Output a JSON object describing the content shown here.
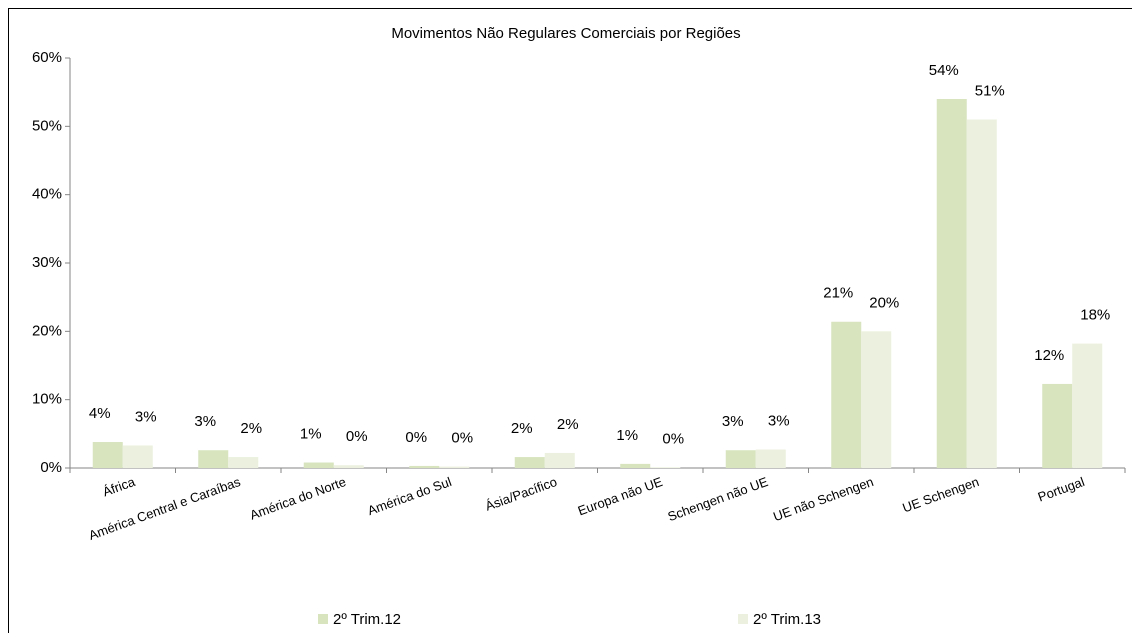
{
  "chart_data": {
    "type": "bar",
    "title": "Movimentos Não Regulares Comerciais por Regiões",
    "categories": [
      "África",
      "América Central e Caraíbas",
      "América do Norte",
      "América do Sul",
      "Ásia/Pacífico",
      "Europa não UE",
      "Schengen não UE",
      "UE não Schengen",
      "UE Schengen",
      "Portugal"
    ],
    "series": [
      {
        "name": "2º Trim.12",
        "color": "#d7e4bd",
        "values": [
          3.8,
          2.6,
          0.8,
          0.3,
          1.6,
          0.6,
          2.6,
          21.4,
          54,
          12.3
        ],
        "value_labels": [
          "4%",
          "3%",
          "1%",
          "0%",
          "2%",
          "1%",
          "3%",
          "21%",
          "54%",
          "12%"
        ]
      },
      {
        "name": "2º Trim.13",
        "color": "#ebf1de",
        "values": [
          3.3,
          1.6,
          0.4,
          0.2,
          2.2,
          0.1,
          2.7,
          20.0,
          51,
          18.2
        ],
        "value_labels": [
          "3%",
          "2%",
          "0%",
          "0%",
          "2%",
          "0%",
          "3%",
          "20%",
          "51%",
          "18%"
        ]
      }
    ],
    "ylim": [
      0,
      60
    ],
    "yticks": [
      {
        "value": 0,
        "label": "0%"
      },
      {
        "value": 10,
        "label": "10%"
      },
      {
        "value": 20,
        "label": "20%"
      },
      {
        "value": 30,
        "label": "30%"
      },
      {
        "value": 40,
        "label": "40%"
      },
      {
        "value": 50,
        "label": "50%"
      },
      {
        "value": 60,
        "label": "60%"
      }
    ],
    "grid": false,
    "legend": "bottom"
  }
}
